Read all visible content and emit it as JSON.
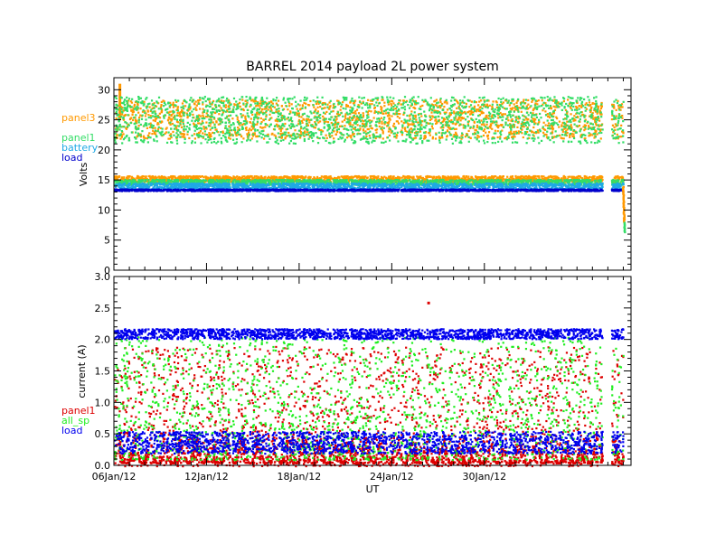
{
  "chart_data": [
    {
      "type": "scatter",
      "title": "BARREL 2014 payload 2L power system",
      "ylabel": "Volts",
      "ylim": [
        0,
        32
      ],
      "yticks": [
        "0",
        "5",
        "10",
        "15",
        "20",
        "25",
        "30"
      ],
      "xlim": [
        0,
        33.5
      ],
      "grid": false,
      "legend_position": "left-outside",
      "series": [
        {
          "name": "panel3",
          "color": "#ff9900",
          "bands": [
            [
              22,
              28.5
            ],
            [
              14.8,
              15.8
            ]
          ],
          "spikes": [
            [
              0.3,
              31
            ]
          ]
        },
        {
          "name": "panel1",
          "color": "#33dd66",
          "bands": [
            [
              21.2,
              29
            ],
            [
              14.3,
              15.2
            ]
          ]
        },
        {
          "name": "battery",
          "color": "#1fa9e6",
          "bands": [
            [
              13.6,
              14.6
            ]
          ]
        },
        {
          "name": "load",
          "color": "#0000cc",
          "bands": [
            [
              13.3,
              13.6
            ]
          ]
        }
      ],
      "gap": [
        31.6,
        32.2
      ],
      "tail": {
        "start": 32.9,
        "end": 33.0,
        "to_value": 6.5
      }
    },
    {
      "type": "scatter",
      "xlabel": "UT",
      "ylabel": "current (A)",
      "ylim": [
        0,
        3.0
      ],
      "yticks": [
        "0.0",
        "0.5",
        "1.0",
        "1.5",
        "2.0",
        "2.5",
        "3.0"
      ],
      "xlim": [
        0,
        33.5
      ],
      "xticks": [
        {
          "value": 0,
          "label": "06Jan/12"
        },
        {
          "value": 6,
          "label": "12Jan/12"
        },
        {
          "value": 12,
          "label": "18Jan/12"
        },
        {
          "value": 18,
          "label": "24Jan/12"
        },
        {
          "value": 24,
          "label": "30Jan/12"
        }
      ],
      "grid": false,
      "legend_position": "left-outside",
      "series": [
        {
          "name": "panel1",
          "color": "#dd0000",
          "bands": [
            [
              0.0,
              1.9
            ]
          ],
          "baseline": [
            0.05,
            0.5
          ],
          "outliers": [
            [
              20.3,
              2.6
            ]
          ]
        },
        {
          "name": "all_sp",
          "color": "#22ee22",
          "bands": [
            [
              0.1,
              2.05
            ]
          ]
        },
        {
          "name": "load",
          "color": "#0000ee",
          "bands": [
            [
              2.02,
              2.18
            ],
            [
              0.2,
              0.55
            ]
          ]
        }
      ],
      "gap": [
        31.6,
        32.2
      ]
    }
  ]
}
